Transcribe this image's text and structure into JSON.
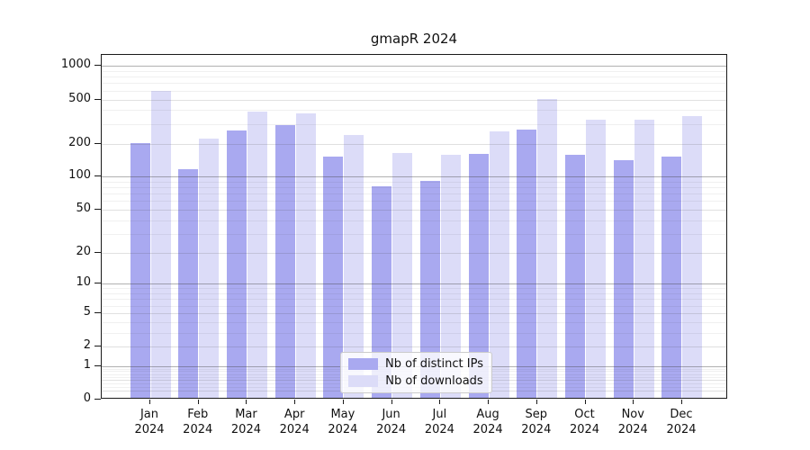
{
  "title": "gmapR 2024",
  "chart_data": {
    "type": "bar",
    "title": "gmapR 2024",
    "xlabel": "",
    "ylabel": "",
    "y_scale": "log10(1+x)",
    "ylim": [
      0,
      1260
    ],
    "yticks": [
      0,
      1,
      2,
      5,
      10,
      20,
      50,
      100,
      200,
      500,
      1000
    ],
    "grid": true,
    "legend_position": "lower center inside plot",
    "categories": [
      "Jan 2024",
      "Feb 2024",
      "Mar 2024",
      "Apr 2024",
      "May 2024",
      "Jun 2024",
      "Jul 2024",
      "Aug 2024",
      "Sep 2024",
      "Oct 2024",
      "Nov 2024",
      "Dec 2024"
    ],
    "series": [
      {
        "name": "Nb of distinct IPs",
        "color": "#a9a9f0",
        "values": [
          203,
          118,
          260,
          291,
          151,
          82,
          91,
          161,
          268,
          158,
          142,
          151
        ]
      },
      {
        "name": "Nb of downloads",
        "color": "#dcdcf8",
        "values": [
          596,
          221,
          387,
          371,
          241,
          163,
          157,
          259,
          501,
          328,
          329,
          351
        ]
      }
    ]
  }
}
